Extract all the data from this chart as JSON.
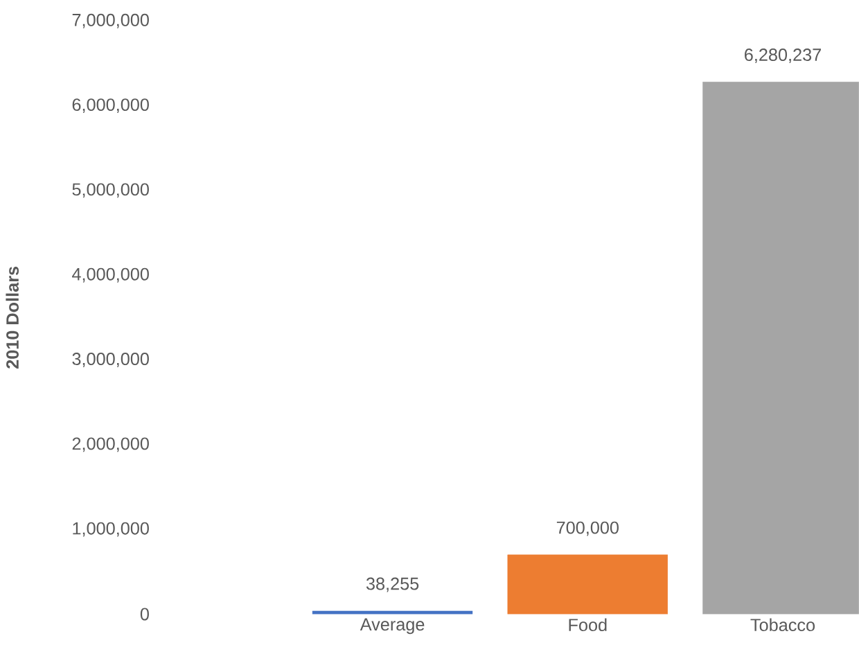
{
  "chart_data": {
    "type": "bar",
    "ylabel": "2010 Dollars",
    "categories": [
      "Average",
      "Food",
      "Tobacco"
    ],
    "values": [
      38255,
      700000,
      6280237
    ],
    "colors": [
      "#4472c4",
      "#ed7d31",
      "#a5a5a5"
    ],
    "value_labels": [
      "38,255",
      "700,000",
      "6,280,237"
    ],
    "ylim": [
      0,
      7000000
    ],
    "yticks": [
      {
        "value": 0,
        "label": "0"
      },
      {
        "value": 1000000,
        "label": "1,000,000"
      },
      {
        "value": 2000000,
        "label": "2,000,000"
      },
      {
        "value": 3000000,
        "label": "3,000,000"
      },
      {
        "value": 4000000,
        "label": "4,000,000"
      },
      {
        "value": 5000000,
        "label": "5,000,000"
      },
      {
        "value": 6000000,
        "label": "6,000,000"
      },
      {
        "value": 7000000,
        "label": "7,000,000"
      }
    ],
    "grid": false
  }
}
